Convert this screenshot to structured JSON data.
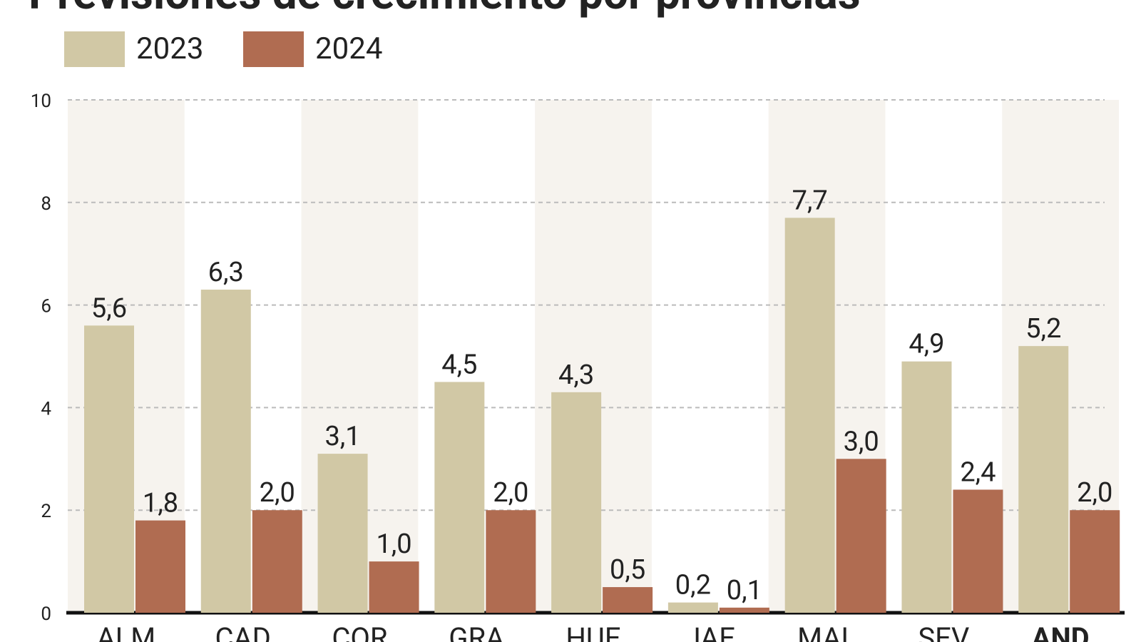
{
  "chart_data": {
    "type": "bar",
    "title": "Previsiones de crecimiento por provincias",
    "categories": [
      "ALM",
      "CAD",
      "COR",
      "GRA",
      "HUE",
      "JAE",
      "MAL",
      "SEV",
      "AND"
    ],
    "series": [
      {
        "name": "2023",
        "color": "#d1c8a5",
        "values": [
          5.6,
          6.3,
          3.1,
          4.5,
          4.3,
          0.2,
          7.7,
          4.9,
          5.2
        ],
        "value_labels": [
          "5,6",
          "6,3",
          "3,1",
          "4,5",
          "4,3",
          "0,2",
          "7,7",
          "4,9",
          "5,2"
        ]
      },
      {
        "name": "2024",
        "color": "#b06c51",
        "values": [
          1.8,
          2.0,
          1.0,
          2.0,
          0.5,
          0.1,
          3.0,
          2.4,
          2.0
        ],
        "value_labels": [
          "1,8",
          "2,0",
          "1,0",
          "2,0",
          "0,5",
          "0,1",
          "3,0",
          "2,4",
          "2,0"
        ]
      }
    ],
    "ylim": [
      0,
      10
    ],
    "yticks": [
      0,
      2,
      4,
      6,
      8,
      10
    ],
    "grid": true
  }
}
